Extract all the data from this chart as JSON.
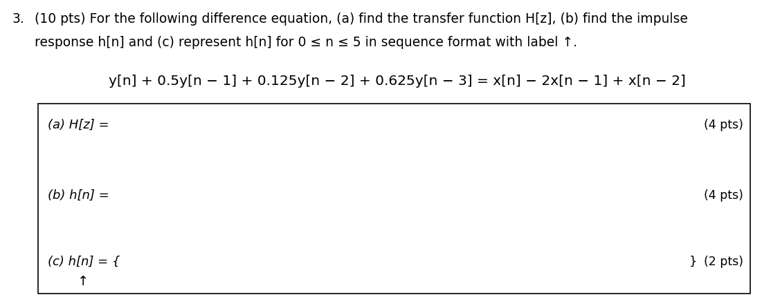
{
  "background_color": "#ffffff",
  "fig_width": 11.14,
  "fig_height": 4.43,
  "dpi": 100,
  "problem_number": "3.",
  "problem_header": "  (10 pts) For the following difference equation, (a) find the transfer function H[z], (b) find the impulse",
  "problem_header2": "  response h[n] and (c) represent h[n] for 0 ≤ n ≤ 5 in sequence format with label ↑.",
  "equation": "y[n] + 0.5y[n − 1] + 0.125y[n − 2] + 0.625y[n − 3] = x[n] − 2x[n − 1] + x[n − 2]",
  "part_a_label": "(a) H[z] =",
  "part_a_pts": "(4 pts)",
  "part_b_label": "(b) h[n] =",
  "part_b_pts": "(4 pts)",
  "part_c_label": "(c) h[n] = {",
  "part_c_close": "}",
  "part_c_pts": "(2 pts)",
  "arrow": "↑",
  "text_color": "#000000",
  "font_size_header": 13.5,
  "font_size_eq": 14.5,
  "font_size_parts": 13,
  "font_size_pts": 12.5
}
